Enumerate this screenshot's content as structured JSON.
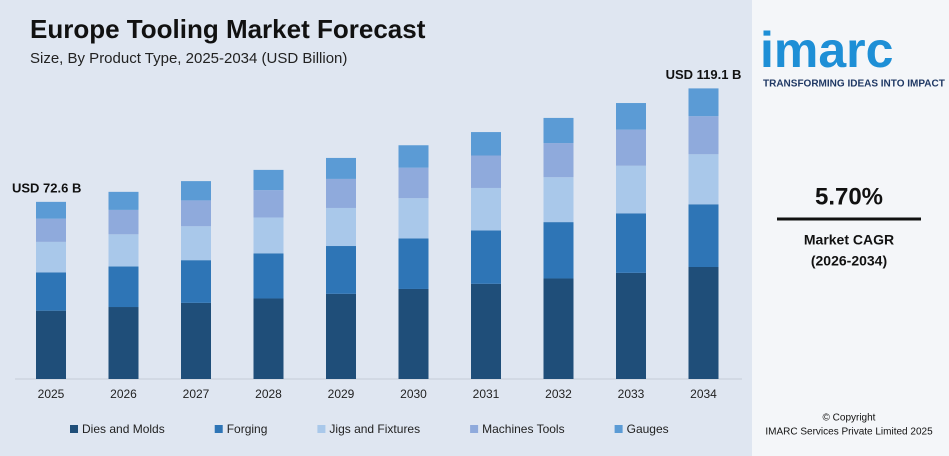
{
  "chart_data": {
    "type": "stacked_bar",
    "title": "Europe Tooling Market Forecast",
    "subtitle": "Size, By Product Type, 2025-2034 (USD Billion)",
    "categories": [
      "2025",
      "2026",
      "2027",
      "2028",
      "2029",
      "2030",
      "2031",
      "2032",
      "2033",
      "2034"
    ],
    "series": [
      {
        "name": "Dies and Molds",
        "color": "#1f4e79",
        "values": [
          28.0,
          29.5,
          31.2,
          33.0,
          34.9,
          36.9,
          39.0,
          41.2,
          43.5,
          45.9
        ]
      },
      {
        "name": "Forging",
        "color": "#2e75b6",
        "values": [
          15.7,
          16.6,
          17.5,
          18.5,
          19.6,
          20.7,
          21.9,
          23.1,
          24.4,
          25.7
        ]
      },
      {
        "name": "Jigs and Fixtures",
        "color": "#a9c8ea",
        "values": [
          12.5,
          13.2,
          13.9,
          14.7,
          15.6,
          16.5,
          17.4,
          18.4,
          19.5,
          20.5
        ]
      },
      {
        "name": "Machines Tools",
        "color": "#8faadc",
        "values": [
          9.5,
          10.0,
          10.6,
          11.2,
          11.9,
          12.5,
          13.3,
          14.0,
          14.8,
          15.6
        ]
      },
      {
        "name": "Gauges",
        "color": "#5b9bd5",
        "values": [
          6.9,
          7.4,
          7.9,
          8.3,
          8.6,
          9.2,
          9.6,
          10.3,
          10.9,
          11.4
        ]
      }
    ],
    "total_labels": [
      {
        "category": "2025",
        "value": 72.6,
        "label": "USD 72.6 B"
      },
      {
        "category": "2034",
        "value": 119.1,
        "label": "USD 119.1 B"
      }
    ],
    "ylim": [
      0,
      125
    ],
    "legend": "bottom"
  },
  "side_panel": {
    "logo": "imarc",
    "tagline": "TRANSFORMING IDEAS INTO IMPACT",
    "cagr": "5.70%",
    "cagr_label": "Market CAGR",
    "cagr_period": "(2026-2034)",
    "copyright": "© Copyright",
    "company": "IMARC Services Private Limited 2025"
  }
}
